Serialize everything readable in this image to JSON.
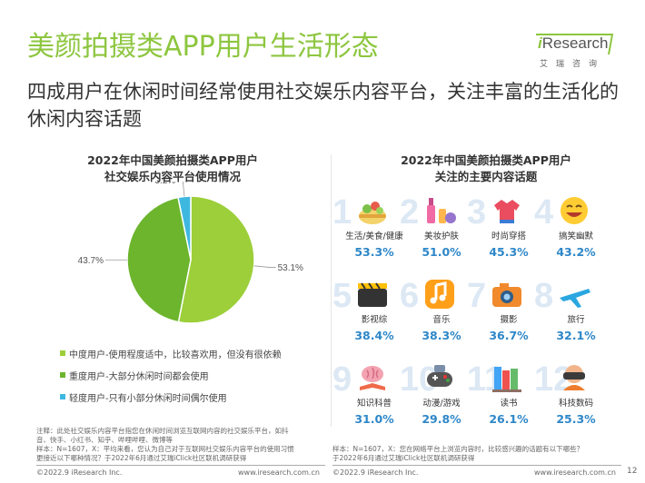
{
  "header": {
    "title": "美颜拍摄类APP用户生活形态",
    "subtitle": "四成用户在休闲时间经常使用社交娱乐内容平台，关注丰富的生活化的休闲内容话题"
  },
  "logo": {
    "brand_i": "i",
    "brand_rest": "Research",
    "cn": "艾瑞咨询"
  },
  "left_chart": {
    "title_line1": "2022年中国美颜拍摄类APP用户",
    "title_line2": "社交娱乐内容平台使用情况"
  },
  "right_chart": {
    "title_line1": "2022年中国美颜拍摄类APP用户",
    "title_line2": "关注的主要内容话题"
  },
  "chart_data": [
    {
      "type": "pie",
      "title": "2022年中国美颜拍摄类APP用户社交娱乐内容平台使用情况",
      "categories": [
        "中度用户-使用程度适中，比较喜欢用，但没有很依赖",
        "重度用户-大部分休闲时间都会使用",
        "轻度用户-只有小部分休闲时间偶尔使用"
      ],
      "values": [
        53.1,
        43.7,
        3.2
      ],
      "value_labels": [
        "53.1%",
        "43.7%",
        "3.2%"
      ],
      "colors": [
        "#9ccf3a",
        "#6cb52d",
        "#3fb8e0"
      ],
      "legend_position": "bottom"
    },
    {
      "type": "table",
      "title": "2022年中国美颜拍摄类APP用户关注的主要内容话题",
      "categories": [
        "生活/美食/健康",
        "美妆护肤",
        "时尚穿搭",
        "搞笑幽默",
        "影视综",
        "音乐",
        "摄影",
        "旅行",
        "知识科普",
        "动漫/游戏",
        "读书",
        "科技数码"
      ],
      "values": [
        53.3,
        51.0,
        45.3,
        43.2,
        38.4,
        38.3,
        36.7,
        32.1,
        31.0,
        29.8,
        26.1,
        25.3
      ],
      "unit": "%"
    }
  ],
  "topics": [
    {
      "num": "1",
      "label": "生活/美食/健康",
      "pct": "53.3%",
      "icon": "salad-bowl-icon"
    },
    {
      "num": "2",
      "label": "美妆护肤",
      "pct": "51.0%",
      "icon": "cosmetics-icon"
    },
    {
      "num": "3",
      "label": "时尚穿搭",
      "pct": "45.3%",
      "icon": "clothes-hanger-icon"
    },
    {
      "num": "4",
      "label": "搞笑幽默",
      "pct": "43.2%",
      "icon": "laughing-emoji-icon"
    },
    {
      "num": "5",
      "label": "影视综",
      "pct": "38.4%",
      "icon": "clapperboard-icon"
    },
    {
      "num": "6",
      "label": "音乐",
      "pct": "38.3%",
      "icon": "music-note-icon"
    },
    {
      "num": "7",
      "label": "摄影",
      "pct": "36.7%",
      "icon": "camera-icon"
    },
    {
      "num": "8",
      "label": "旅行",
      "pct": "32.1%",
      "icon": "airplane-icon"
    },
    {
      "num": "9",
      "label": "知识科普",
      "pct": "31.0%",
      "icon": "brain-book-icon"
    },
    {
      "num": "10",
      "label": "动漫/游戏",
      "pct": "29.8%",
      "icon": "game-controller-icon"
    },
    {
      "num": "11",
      "label": "读书",
      "pct": "26.1%",
      "icon": "books-icon"
    },
    {
      "num": "12",
      "label": "科技数码",
      "pct": "25.3%",
      "icon": "vr-headset-icon"
    }
  ],
  "notes": {
    "left_line1": "注释：此处社交娱乐内容平台指您在休闲时间浏览互联网内容的社交娱乐平台，如抖",
    "left_line2": "音、快手、小红书、知乎、哔哩哔哩、微博等",
    "left_line3": "样本：N=1607，X：平均来看，您认为自己对于互联网社交娱乐内容平台的使用习惯",
    "left_line4": "更接近以下哪种情况？于2022年6月通过艾瑞iClick社区联机调研获得",
    "right_line1": "样本：N=1607，X：您在网络平台上浏览内容时，比较感兴趣的话题有以下哪些？",
    "right_line2": "于2022年6月通过艾瑞iClick社区联机调研获得"
  },
  "footer": {
    "left_copyright": "©2022.9 iResearch Inc.",
    "left_url": "www.iresearch.com.cn",
    "right_copyright": "©2022.9 iResearch Inc.",
    "right_url": "www.iresearch.com.cn",
    "page_number": "12"
  },
  "colors": {
    "accent_green": "#8dc63f",
    "pct_blue": "#2e87c8",
    "number_watermark": "#dce8f4"
  }
}
